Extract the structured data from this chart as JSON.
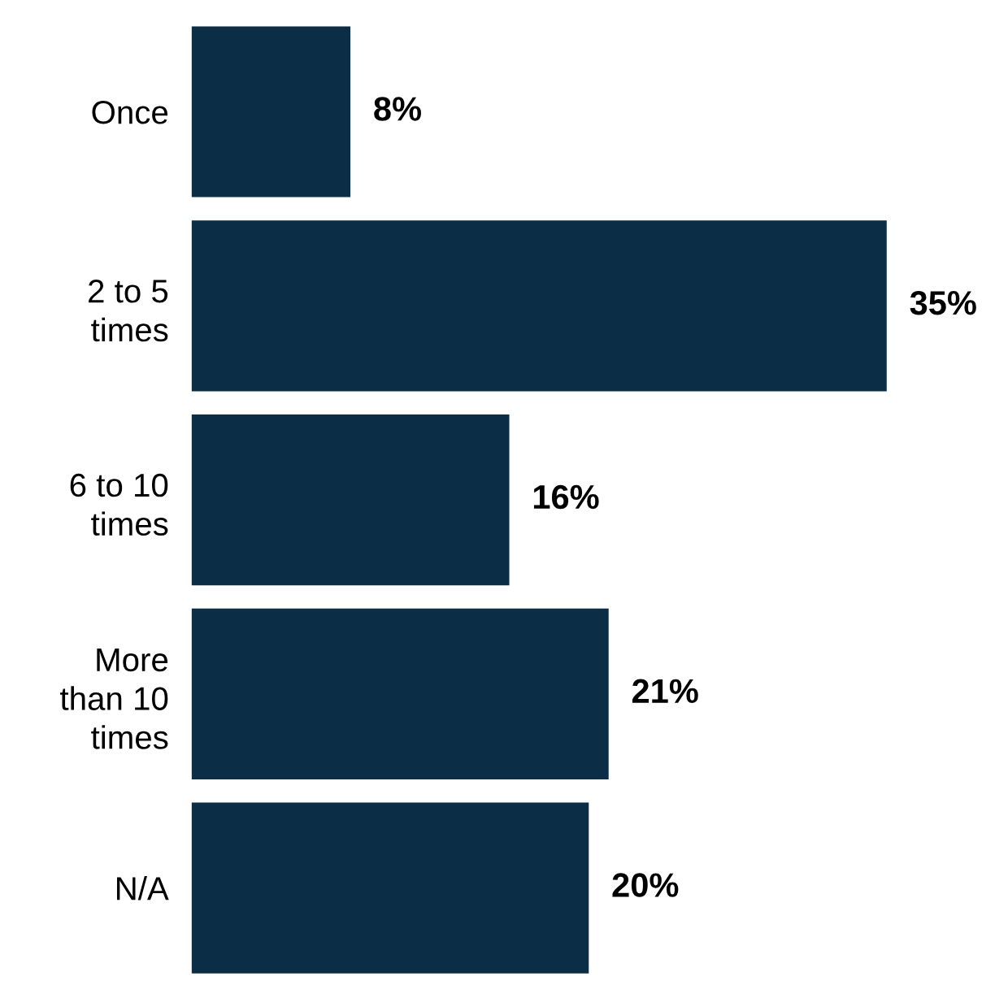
{
  "chart_data": {
    "type": "bar",
    "orientation": "horizontal",
    "categories": [
      "Once",
      "2 to 5\ntimes",
      "6 to 10\ntimes",
      "More\nthan 10\ntimes",
      "N/A"
    ],
    "values": [
      8,
      35,
      16,
      21,
      20
    ],
    "color": "#0b2d45",
    "value_labels": [
      "8%",
      "35%",
      "16%",
      "21%",
      "20%"
    ],
    "grid": false,
    "legend": false
  }
}
